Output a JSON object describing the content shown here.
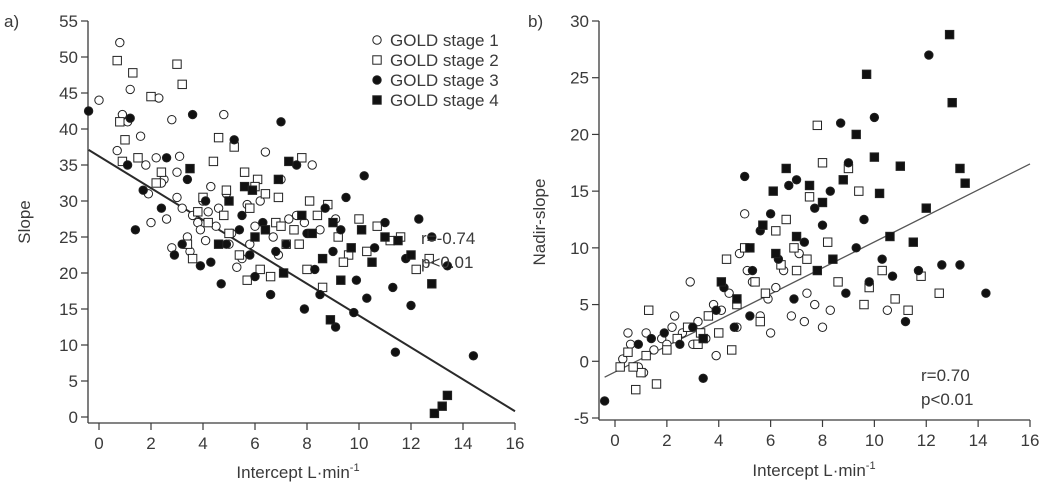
{
  "chart_data": [
    {
      "panel_label": "a)",
      "type": "scatter",
      "xlabel": "Intercept L·min",
      "xlabel_sup": "-1",
      "ylabel": "Slope",
      "xlim": [
        -0.5,
        16
      ],
      "ylim": [
        -1,
        55
      ],
      "xticks": [
        0,
        2,
        4,
        6,
        8,
        10,
        12,
        14,
        16
      ],
      "yticks": [
        0,
        5,
        10,
        15,
        20,
        25,
        30,
        35,
        40,
        45,
        50,
        55
      ],
      "grid": false,
      "legend_position": "top-right",
      "annotations": [
        "r=-0.74",
        "p<0.01"
      ],
      "regression_line": {
        "x": [
          -0.4,
          16.0
        ],
        "y": [
          37.1,
          0.8
        ]
      },
      "series": [
        {
          "name": "GOLD stage 1",
          "marker": "open-circle",
          "x": [
            0.0,
            0.8,
            0.9,
            1.1,
            1.2,
            0.7,
            1.6,
            2.3,
            2.2,
            2.8,
            3.1,
            1.9,
            2.5,
            3.0,
            2.6,
            3.6,
            2.0,
            3.4,
            4.8,
            4.3,
            4.0,
            3.8,
            3.5,
            4.5,
            5.0,
            5.5,
            4.1,
            2.8,
            3.2,
            6.0,
            5.7,
            6.4,
            7.0,
            7.6,
            8.2,
            7.9,
            6.7,
            5.3,
            4.6,
            3.9,
            4.2,
            5.8,
            6.9,
            8.5,
            9.1,
            2.4,
            3.0,
            1.8,
            4.9,
            6.2,
            7.3,
            5.1
          ],
          "y": [
            44.0,
            52.0,
            42.0,
            41.0,
            45.5,
            37.0,
            39.0,
            44.3,
            36.0,
            41.3,
            36.2,
            31.0,
            33.0,
            30.5,
            27.5,
            28.0,
            27.0,
            25.0,
            42.0,
            32.0,
            30.0,
            27.0,
            23.0,
            26.5,
            24.0,
            22.0,
            24.5,
            23.5,
            29.0,
            26.5,
            29.5,
            36.8,
            33.0,
            28.0,
            35.0,
            27.0,
            25.0,
            20.8,
            29.0,
            26.0,
            28.5,
            24.0,
            22.5,
            26.0,
            27.5,
            32.5,
            34.0,
            35.0,
            31.0,
            30.0,
            27.5,
            25.5
          ]
        },
        {
          "name": "GOLD stage 2",
          "marker": "open-square",
          "x": [
            0.7,
            0.8,
            1.3,
            1.0,
            0.9,
            2.0,
            2.2,
            3.0,
            3.2,
            1.5,
            2.4,
            3.6,
            4.0,
            4.4,
            4.6,
            4.9,
            5.2,
            5.6,
            5.8,
            6.1,
            6.4,
            6.8,
            7.2,
            7.5,
            7.8,
            8.1,
            8.4,
            8.8,
            9.2,
            9.6,
            10.0,
            10.3,
            10.7,
            11.2,
            11.6,
            12.2,
            12.7,
            6.2,
            6.6,
            7.0,
            5.4,
            4.2,
            3.4,
            3.8,
            5.0,
            6.0,
            7.7,
            8.6,
            9.4,
            4.8,
            6.9,
            5.7,
            8.0
          ],
          "y": [
            49.5,
            41.0,
            47.8,
            38.5,
            35.5,
            44.5,
            32.5,
            49.0,
            46.2,
            36.0,
            34.0,
            22.0,
            30.5,
            35.5,
            38.8,
            31.5,
            37.5,
            34.0,
            29.0,
            33.0,
            31.0,
            27.0,
            24.0,
            26.0,
            36.0,
            30.0,
            28.0,
            29.5,
            25.0,
            22.5,
            27.5,
            23.0,
            26.5,
            24.5,
            25.0,
            20.5,
            22.0,
            20.5,
            19.5,
            26.5,
            22.5,
            27.0,
            24.0,
            28.5,
            25.5,
            32.0,
            24.0,
            18.0,
            21.5,
            28.0,
            30.5,
            19.0,
            20.5
          ]
        },
        {
          "name": "GOLD stage 3",
          "marker": "filled-circle",
          "x": [
            -0.4,
            1.2,
            1.1,
            1.7,
            1.4,
            2.6,
            3.6,
            3.2,
            2.4,
            4.1,
            4.3,
            4.7,
            5.2,
            5.4,
            5.8,
            6.3,
            6.6,
            7.0,
            7.2,
            7.6,
            8.0,
            8.3,
            8.7,
            9.0,
            9.3,
            9.5,
            9.9,
            10.2,
            10.6,
            11.0,
            11.4,
            11.8,
            12.3,
            12.8,
            13.4,
            14.4,
            10.3,
            9.8,
            8.5,
            7.9,
            6.8,
            6.0,
            5.5,
            4.9,
            3.9,
            2.9,
            3.4,
            11.3,
            12.0,
            9.1
          ],
          "y": [
            42.5,
            41.5,
            35.0,
            31.5,
            26.0,
            36.0,
            42.0,
            24.0,
            29.0,
            30.0,
            21.5,
            18.5,
            38.5,
            26.0,
            22.5,
            27.0,
            17.0,
            41.0,
            24.0,
            35.0,
            25.5,
            20.5,
            29.0,
            23.0,
            26.0,
            30.5,
            19.0,
            33.5,
            23.5,
            27.0,
            9.0,
            22.0,
            27.5,
            25.0,
            21.0,
            8.5,
            16.5,
            14.5,
            17.0,
            15.0,
            23.0,
            19.5,
            28.0,
            24.0,
            21.0,
            22.5,
            33.0,
            18.0,
            15.5,
            12.5
          ]
        },
        {
          "name": "GOLD stage 4",
          "marker": "filled-square",
          "x": [
            3.5,
            5.0,
            5.6,
            6.4,
            6.9,
            7.3,
            7.8,
            8.2,
            8.6,
            9.0,
            9.3,
            9.7,
            10.1,
            10.5,
            11.0,
            11.5,
            12.0,
            12.9,
            13.2,
            13.4,
            12.8,
            6.0,
            7.1,
            4.6,
            5.9,
            8.9
          ],
          "y": [
            34.5,
            30.0,
            32.0,
            26.0,
            33.0,
            35.5,
            28.0,
            25.5,
            22.0,
            27.0,
            19.0,
            23.5,
            26.0,
            21.5,
            25.0,
            24.5,
            22.5,
            0.5,
            1.5,
            3.0,
            18.5,
            25.0,
            20.0,
            24.0,
            31.5,
            13.5
          ]
        }
      ]
    },
    {
      "panel_label": "b)",
      "type": "scatter",
      "xlabel": "Intercept L·min",
      "xlabel_sup": "-1",
      "ylabel": "Nadir-slope",
      "xlim": [
        -0.5,
        16
      ],
      "ylim": [
        -5.5,
        30
      ],
      "xticks": [
        0,
        2,
        4,
        6,
        8,
        10,
        12,
        14,
        16
      ],
      "yticks": [
        -5,
        0,
        5,
        10,
        15,
        20,
        25,
        30
      ],
      "grid": false,
      "legend_position": "none",
      "annotations": [
        "r=0.70",
        "p<0.01"
      ],
      "regression_line": {
        "x": [
          -0.4,
          16.0
        ],
        "y": [
          -1.4,
          17.4
        ]
      },
      "series": [
        {
          "name": "GOLD stage 1",
          "marker": "open-circle",
          "x": [
            0.3,
            0.6,
            0.9,
            1.2,
            1.5,
            1.8,
            2.0,
            2.3,
            2.6,
            2.9,
            3.2,
            3.5,
            3.8,
            4.1,
            4.4,
            4.7,
            5.0,
            5.3,
            5.6,
            5.9,
            6.2,
            6.5,
            6.8,
            7.1,
            7.4,
            7.7,
            8.0,
            8.3,
            2.2,
            3.0,
            4.8,
            5.1,
            6.0,
            7.3,
            10.5,
            3.9,
            1.1,
            0.5
          ],
          "y": [
            0.2,
            1.5,
            -0.5,
            2.5,
            1.0,
            2.0,
            1.5,
            4.0,
            2.5,
            7.0,
            3.5,
            2.0,
            5.0,
            4.5,
            6.0,
            3.0,
            13.0,
            7.0,
            4.0,
            5.5,
            6.5,
            8.0,
            4.0,
            9.5,
            6.0,
            5.0,
            3.0,
            4.5,
            3.0,
            1.5,
            9.5,
            8.0,
            2.5,
            3.5,
            4.5,
            0.5,
            -1.0,
            2.5
          ]
        },
        {
          "name": "GOLD stage 2",
          "marker": "open-square",
          "x": [
            0.2,
            0.5,
            0.8,
            1.0,
            1.3,
            1.6,
            2.0,
            2.4,
            2.8,
            3.2,
            3.6,
            4.0,
            4.3,
            4.7,
            5.0,
            5.4,
            5.8,
            6.2,
            6.6,
            7.0,
            7.4,
            7.8,
            8.2,
            8.6,
            9.0,
            9.4,
            9.8,
            10.3,
            10.8,
            11.3,
            11.8,
            12.5,
            6.4,
            6.9,
            7.5,
            8.0,
            5.6,
            4.5,
            3.3,
            1.2,
            0.7,
            9.6
          ],
          "y": [
            -0.5,
            0.8,
            -2.5,
            -1.0,
            4.5,
            -2.0,
            1.0,
            2.0,
            3.0,
            1.5,
            4.0,
            2.5,
            9.0,
            5.0,
            10.0,
            7.0,
            6.0,
            11.5,
            12.5,
            8.0,
            9.0,
            20.8,
            10.5,
            7.0,
            17.0,
            15.0,
            6.5,
            8.0,
            5.5,
            4.5,
            7.5,
            6.0,
            8.5,
            10.0,
            14.5,
            17.5,
            3.5,
            1.0,
            2.5,
            0.5,
            -0.5,
            5.0
          ]
        },
        {
          "name": "GOLD stage 3",
          "marker": "filled-circle",
          "x": [
            -0.4,
            0.9,
            1.4,
            1.9,
            2.5,
            3.0,
            3.4,
            3.9,
            4.2,
            4.6,
            5.0,
            5.3,
            5.6,
            6.0,
            6.3,
            6.7,
            7.0,
            7.3,
            7.7,
            8.0,
            8.3,
            8.7,
            9.0,
            9.3,
            9.6,
            10.0,
            10.3,
            10.7,
            11.2,
            11.7,
            12.1,
            12.6,
            13.3,
            14.3,
            8.9,
            9.8,
            6.9,
            5.2
          ],
          "y": [
            -3.5,
            1.5,
            2.0,
            2.5,
            1.5,
            3.0,
            -1.5,
            4.5,
            6.5,
            3.0,
            16.3,
            8.0,
            11.5,
            13.0,
            9.0,
            15.5,
            16.0,
            10.5,
            13.5,
            12.0,
            15.0,
            21.0,
            17.5,
            10.0,
            12.5,
            21.5,
            9.0,
            7.5,
            3.5,
            8.0,
            27.0,
            8.5,
            8.5,
            6.0,
            6.0,
            7.0,
            5.5,
            4.0
          ]
        },
        {
          "name": "GOLD stage 4",
          "marker": "filled-square",
          "x": [
            3.4,
            4.1,
            4.7,
            5.2,
            5.7,
            6.1,
            6.6,
            7.0,
            7.5,
            8.0,
            8.4,
            8.8,
            9.3,
            9.7,
            10.0,
            10.2,
            10.6,
            11.0,
            11.5,
            12.0,
            12.9,
            13.0,
            13.3,
            13.5,
            6.2,
            7.8
          ],
          "y": [
            2.0,
            7.0,
            5.5,
            10.0,
            12.0,
            15.0,
            17.0,
            11.0,
            15.5,
            14.0,
            9.0,
            16.0,
            20.0,
            25.3,
            18.0,
            14.8,
            11.0,
            17.2,
            10.5,
            13.5,
            28.8,
            22.8,
            17.0,
            15.7,
            9.5,
            8.0
          ]
        }
      ]
    }
  ]
}
